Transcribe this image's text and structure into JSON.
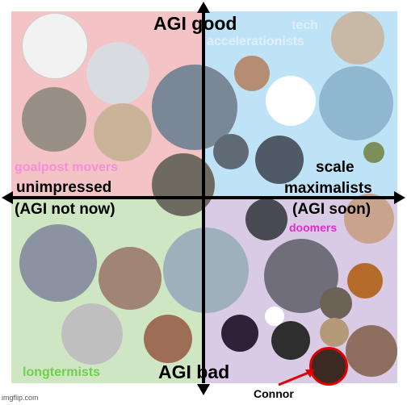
{
  "axes": {
    "top": "AGI good",
    "bottom": "AGI bad",
    "left_line1": "unimpressed",
    "left_line2": "(AGI not now)",
    "right_line1": "scale",
    "right_line2": "maximalists",
    "right_line3": "(AGI soon)"
  },
  "group_labels": {
    "tech_line1": "tech",
    "tech_line2": "accelerationists",
    "goalpost": "goalpost movers",
    "doomers": "doomers",
    "longtermists": "longtermists"
  },
  "annotation": {
    "name": "Connor"
  },
  "watermark": "imgflip.com",
  "colors": {
    "top_left": "#f3c3c5",
    "top_right": "#bfe3f6",
    "bottom_left": "#cfe6c3",
    "bottom_right": "#d9cbe5",
    "tech": "#dfeff8",
    "goalpost": "#f48fd9",
    "doomers": "#e02bd0",
    "longtermists": "#6fcf4e",
    "highlight": "#e00000"
  }
}
